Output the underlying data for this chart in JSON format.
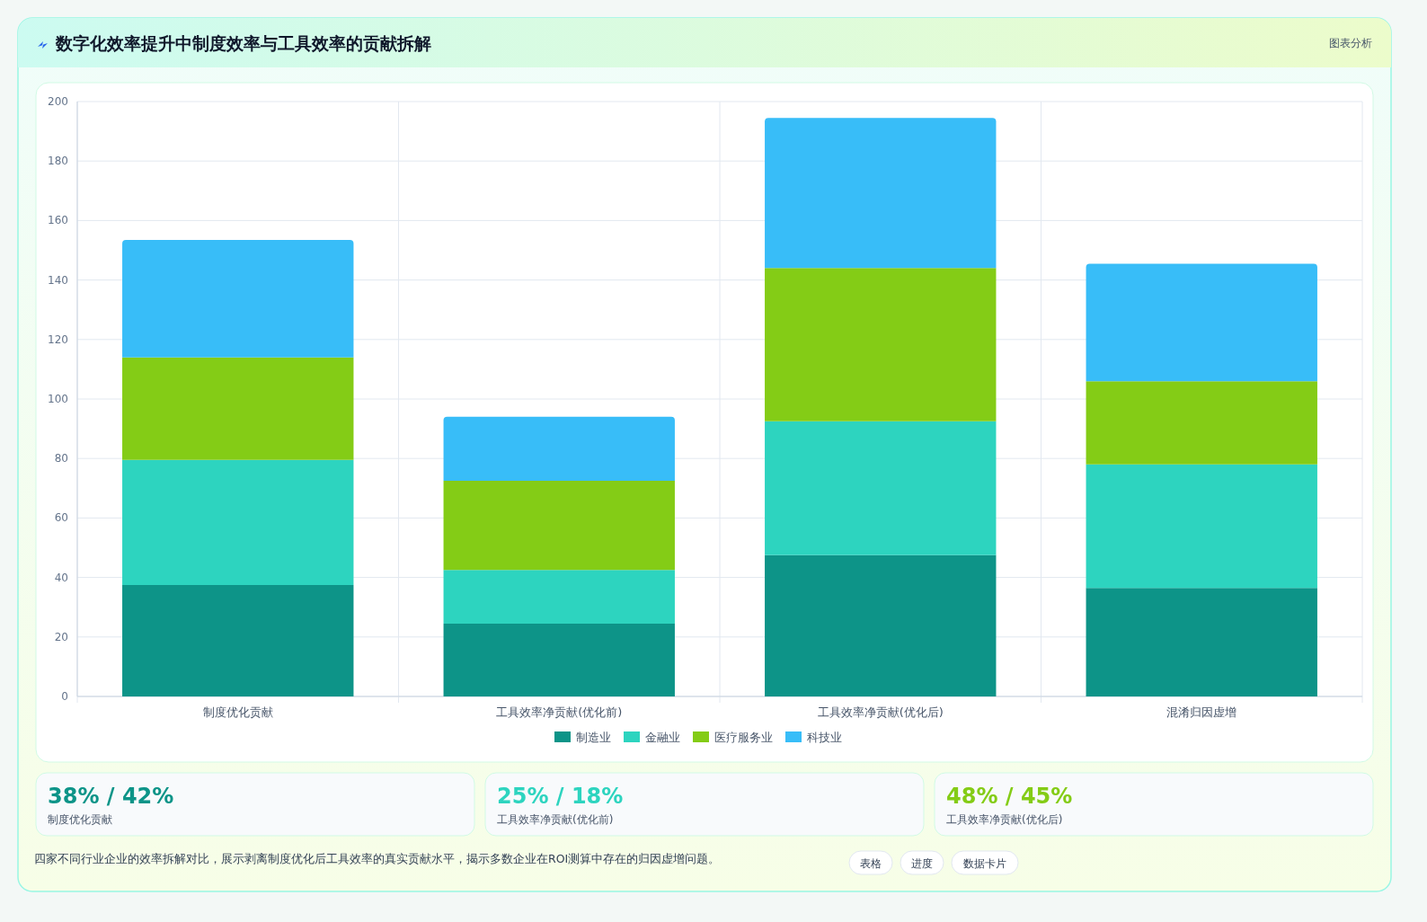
{
  "chart_data": {
    "type": "bar",
    "stacked": true,
    "title": "数字化效率提升中制度效率与工具效率的贡献拆解",
    "categories": [
      "制度优化贡献",
      "工具效率净贡献(优化前)",
      "工具效率净贡献(优化后)",
      "混淆归因虚增"
    ],
    "series": [
      {
        "name": "制造业",
        "color": "#0d9488",
        "values": [
          37.5,
          24.5,
          47.5,
          36.5
        ]
      },
      {
        "name": "金融业",
        "color": "#2dd4bf",
        "values": [
          42,
          18,
          45,
          41.5
        ]
      },
      {
        "name": "医疗服务业",
        "color": "#84cc16",
        "values": [
          34.5,
          30,
          51.5,
          28
        ]
      },
      {
        "name": "科技业",
        "color": "#38bdf8",
        "values": [
          39.5,
          21.5,
          50.5,
          39.5
        ]
      }
    ],
    "ylim": [
      0,
      200
    ],
    "yticks": [
      0,
      20,
      40,
      60,
      80,
      100,
      120,
      140,
      160,
      180,
      200
    ],
    "grid": true,
    "legend": "bottom",
    "annotations": [
      "图表分析",
      "38% / 42%",
      "制度优化贡献",
      "25% / 18%",
      "工具效率净贡献(优化前)",
      "48% / 45%",
      "工具效率净贡献(优化后)",
      "四家不同行业企业的效率拆解对比，展示剥离制度优化后工具效率的真实贡献水平，揭示多数企业在ROI测算中存在的归因虚增问题。",
      "表格",
      "进度",
      "数据卡片"
    ]
  }
}
